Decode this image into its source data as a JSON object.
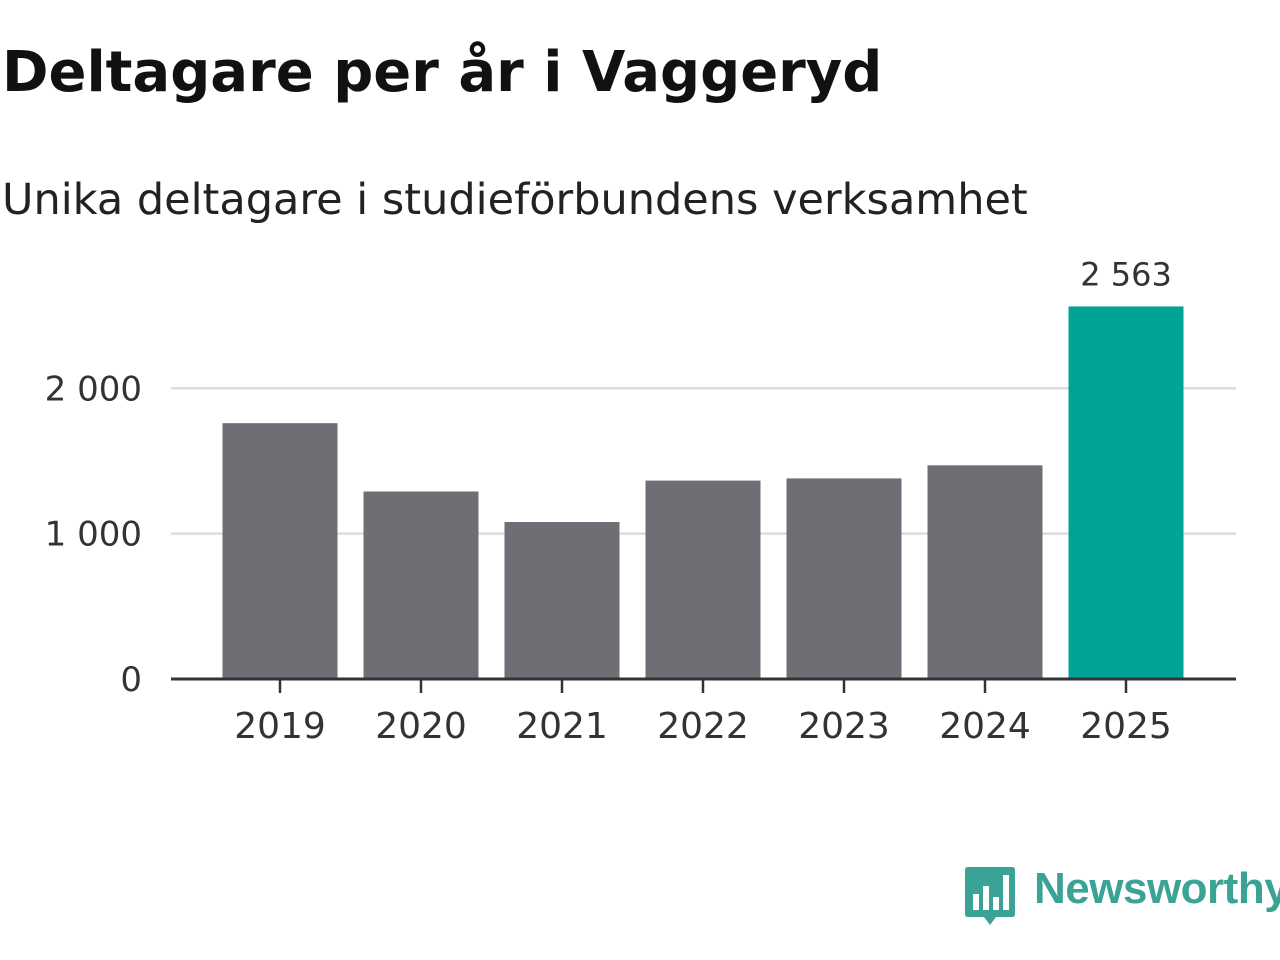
{
  "title": "Deltagare per år i Vaggeryd",
  "subtitle": "Unika deltagare i studieförbundens verksamhet",
  "brand": {
    "name": "Newsworthy",
    "color": "#3aa396",
    "icon": "bar-chart-speech-bubble-icon"
  },
  "colors": {
    "bar": "#6f6e74",
    "highlight": "#00a497",
    "grid": "#dddddd",
    "axis": "#333333"
  },
  "chart_data": {
    "type": "bar",
    "title": "Deltagare per år i Vaggeryd",
    "subtitle": "Unika deltagare i studieförbundens verksamhet",
    "categories": [
      "2019",
      "2020",
      "2021",
      "2022",
      "2023",
      "2024",
      "2025"
    ],
    "values": [
      1760,
      1290,
      1080,
      1365,
      1380,
      1470,
      2563
    ],
    "highlight_index": 6,
    "data_labels": [
      {
        "index": 6,
        "text": "2 563"
      }
    ],
    "yticks": [
      {
        "value": 0,
        "label": "0"
      },
      {
        "value": 1000,
        "label": "1 000"
      },
      {
        "value": 2000,
        "label": "2 000"
      }
    ],
    "ylim": [
      0,
      2800
    ],
    "xlabel": "",
    "ylabel": "",
    "grid": true,
    "legend": "none"
  }
}
